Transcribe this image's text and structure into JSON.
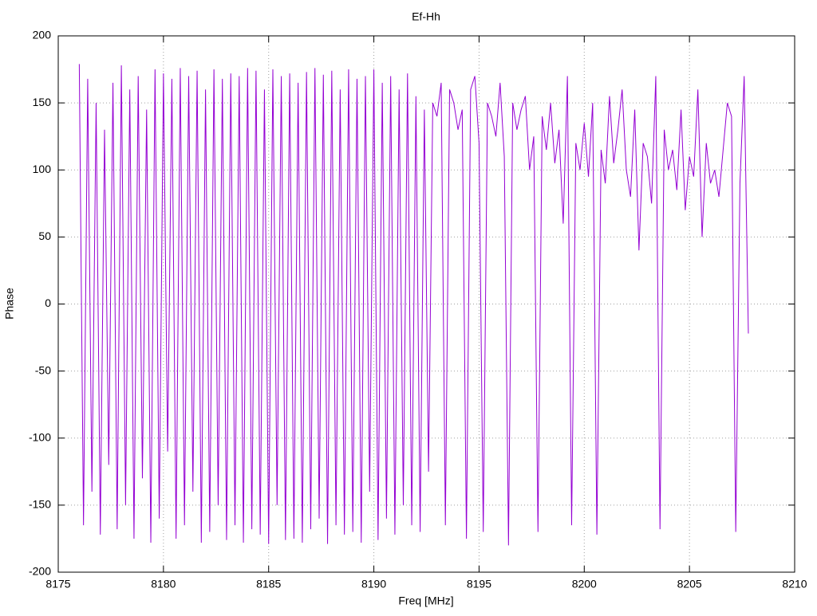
{
  "chart_data": {
    "type": "line",
    "title": "Ef-Hh",
    "x_label": "Freq [MHz]",
    "y_label": "Phase",
    "xlim": [
      8175,
      8210
    ],
    "xticks": [
      8175,
      8180,
      8185,
      8190,
      8195,
      8200,
      8205,
      8210
    ],
    "ylim": [
      -200,
      200
    ],
    "yticks": [
      -200,
      -150,
      -100,
      -50,
      0,
      50,
      100,
      150,
      200
    ],
    "grid": true,
    "x": [
      8176,
      8176.2,
      8176.4,
      8176.6,
      8176.8,
      8177,
      8177.2,
      8177.4,
      8177.6,
      8177.8,
      8178,
      8178.2,
      8178.4,
      8178.6,
      8178.8,
      8179,
      8179.2,
      8179.4,
      8179.6,
      8179.8,
      8180,
      8180.2,
      8180.4,
      8180.6,
      8180.8,
      8181,
      8181.2,
      8181.4,
      8181.6,
      8181.8,
      8182,
      8182.2,
      8182.4,
      8182.6,
      8182.8,
      8183,
      8183.2,
      8183.4,
      8183.6,
      8183.8,
      8184,
      8184.2,
      8184.4,
      8184.6,
      8184.8,
      8185,
      8185.2,
      8185.4,
      8185.6,
      8185.8,
      8186,
      8186.2,
      8186.4,
      8186.6,
      8186.8,
      8187,
      8187.2,
      8187.4,
      8187.6,
      8187.8,
      8188,
      8188.2,
      8188.4,
      8188.6,
      8188.8,
      8189,
      8189.2,
      8189.4,
      8189.6,
      8189.8,
      8190,
      8190.2,
      8190.4,
      8190.6,
      8190.8,
      8191,
      8191.2,
      8191.4,
      8191.6,
      8191.8,
      8192,
      8192.2,
      8192.4,
      8192.6,
      8192.8,
      8193,
      8193.2,
      8193.4,
      8193.6,
      8193.8,
      8194,
      8194.2,
      8194.4,
      8194.6,
      8194.8,
      8195,
      8195.2,
      8195.4,
      8195.6,
      8195.8,
      8196,
      8196.2,
      8196.4,
      8196.6,
      8196.8,
      8197,
      8197.2,
      8197.4,
      8197.6,
      8197.8,
      8198,
      8198.2,
      8198.4,
      8198.6,
      8198.8,
      8199,
      8199.2,
      8199.4,
      8199.6,
      8199.8,
      8200,
      8200.2,
      8200.4,
      8200.6,
      8200.8,
      8201,
      8201.2,
      8201.4,
      8201.6,
      8201.8,
      8202,
      8202.2,
      8202.4,
      8202.6,
      8202.8,
      8203,
      8203.2,
      8203.4,
      8203.6,
      8203.8,
      8204,
      8204.2,
      8204.4,
      8204.6,
      8204.8,
      8205,
      8205.2,
      8205.4,
      8205.6,
      8205.8,
      8206,
      8206.2,
      8206.4,
      8206.6,
      8206.8,
      8207,
      8207.2,
      8207.4,
      8207.6,
      8207.8
    ],
    "series": [
      {
        "color": "#9400d3",
        "values": [
          179,
          -165,
          168,
          -140,
          150,
          -172,
          130,
          -120,
          165,
          -168,
          178,
          -150,
          160,
          -175,
          170,
          -130,
          145,
          -178,
          175,
          -160,
          172,
          -110,
          168,
          -175,
          176,
          -165,
          170,
          -140,
          174,
          -178,
          160,
          -170,
          175,
          -150,
          168,
          -176,
          172,
          -165,
          170,
          -178,
          176,
          -168,
          174,
          -172,
          160,
          -179,
          175,
          -150,
          170,
          -176,
          172,
          -175,
          165,
          -178,
          173,
          -168,
          176,
          -160,
          171,
          -179,
          174,
          -165,
          160,
          -172,
          175,
          -170,
          168,
          -178,
          170,
          -140,
          175,
          -176,
          165,
          -160,
          170,
          -172,
          160,
          -150,
          172,
          -165,
          155,
          -170,
          145,
          -125,
          150,
          140,
          165,
          -165,
          160,
          150,
          130,
          145,
          -175,
          160,
          170,
          120,
          -170,
          150,
          140,
          125,
          165,
          110,
          -180,
          150,
          130,
          145,
          155,
          100,
          125,
          -170,
          140,
          115,
          150,
          105,
          130,
          60,
          170,
          -165,
          120,
          100,
          135,
          95,
          150,
          -172,
          115,
          90,
          155,
          105,
          130,
          160,
          100,
          80,
          145,
          40,
          120,
          110,
          75,
          170,
          -168,
          130,
          100,
          115,
          85,
          145,
          70,
          110,
          95,
          160,
          50,
          120,
          90,
          100,
          80,
          115,
          150,
          140,
          -170,
          90,
          170,
          -22
        ]
      }
    ]
  }
}
